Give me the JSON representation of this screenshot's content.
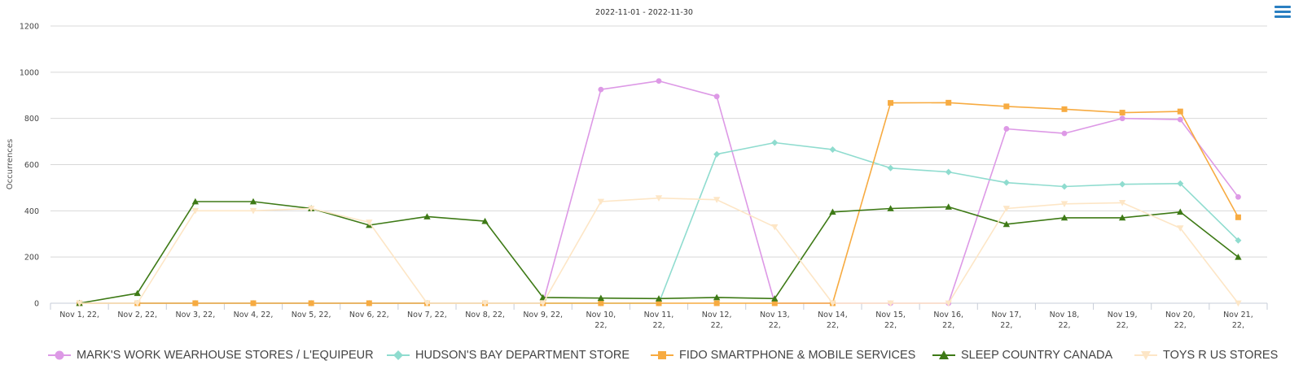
{
  "chart_data": {
    "type": "line",
    "title": "2022-11-01 - 2022-11-30",
    "ylabel": "Occurrences",
    "xlabel": "",
    "ylim": [
      0,
      1200
    ],
    "yticks": [
      0,
      200,
      400,
      600,
      800,
      1000,
      1200
    ],
    "grid": true,
    "legend_position": "bottom",
    "categories": [
      [
        "Nov 1, 22,"
      ],
      [
        "Nov 2, 22,"
      ],
      [
        "Nov 3, 22,"
      ],
      [
        "Nov 4, 22,"
      ],
      [
        "Nov 5, 22,"
      ],
      [
        "Nov 6, 22,"
      ],
      [
        "Nov 7, 22,"
      ],
      [
        "Nov 8, 22,"
      ],
      [
        "Nov 9, 22,"
      ],
      [
        "Nov 10,",
        "22,"
      ],
      [
        "Nov 11,",
        "22,"
      ],
      [
        "Nov 12,",
        "22,"
      ],
      [
        "Nov 13,",
        "22,"
      ],
      [
        "Nov 14,",
        "22,"
      ],
      [
        "Nov 15,",
        "22,"
      ],
      [
        "Nov 16,",
        "22,"
      ],
      [
        "Nov 17,",
        "22,"
      ],
      [
        "Nov 18,",
        "22,"
      ],
      [
        "Nov 19,",
        "22,"
      ],
      [
        "Nov 20,",
        "22,"
      ],
      [
        "Nov 21,",
        "22,"
      ]
    ],
    "series": [
      {
        "name": "MARK'S WORK WEARHOUSE STORES / L'EQUIPEUR",
        "color": "#dd99e6",
        "marker": "circle",
        "values": [
          0,
          0,
          0,
          0,
          0,
          0,
          0,
          0,
          0,
          925,
          962,
          895,
          0,
          0,
          0,
          0,
          755,
          735,
          800,
          795,
          460
        ]
      },
      {
        "name": "HUDSON'S BAY DEPARTMENT STORE",
        "color": "#8fdccf",
        "marker": "diamond",
        "values": [
          0,
          0,
          0,
          0,
          0,
          0,
          0,
          0,
          0,
          0,
          0,
          645,
          695,
          665,
          585,
          568,
          522,
          505,
          515,
          518,
          272
        ]
      },
      {
        "name": "FIDO SMARTPHONE & MOBILE SERVICES",
        "color": "#f7ab41",
        "marker": "square",
        "values": [
          0,
          0,
          0,
          0,
          0,
          0,
          0,
          0,
          0,
          0,
          0,
          0,
          0,
          0,
          867,
          868,
          852,
          840,
          825,
          830,
          372
        ]
      },
      {
        "name": "SLEEP COUNTRY CANADA",
        "color": "#3e7a16",
        "marker": "triangle",
        "values": [
          0,
          43,
          440,
          440,
          410,
          338,
          375,
          355,
          25,
          22,
          20,
          25,
          20,
          395,
          410,
          417,
          342,
          370,
          370,
          395,
          200
        ]
      },
      {
        "name": "TOYS R US STORES",
        "color": "#fde6c6",
        "marker": "triangle-down",
        "values": [
          0,
          0,
          400,
          400,
          410,
          350,
          0,
          0,
          0,
          440,
          455,
          448,
          330,
          0,
          0,
          0,
          410,
          430,
          435,
          325,
          0
        ]
      }
    ]
  },
  "menu": {
    "icon": "hamburger-menu-icon",
    "color": "#2a7fc1"
  }
}
